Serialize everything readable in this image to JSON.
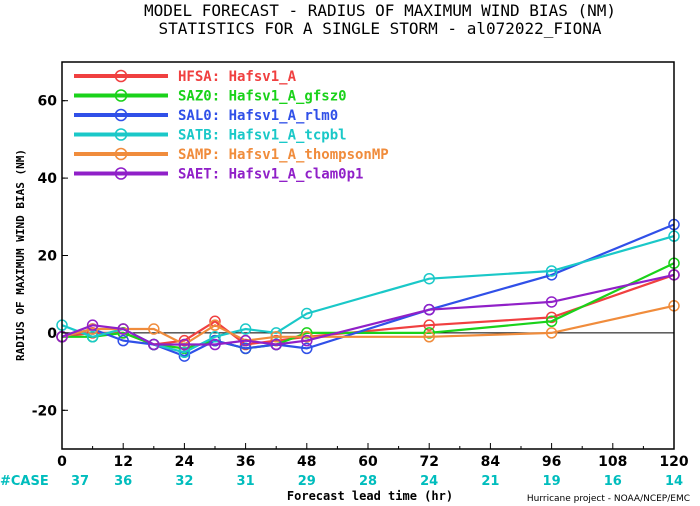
{
  "header": {
    "line1": "MODEL FORECAST - RADIUS OF MAXIMUM WIND BIAS (NM)",
    "line2": "STATISTICS FOR A SINGLE STORM - al072022_FIONA"
  },
  "footer": {
    "case_label": "#CASE",
    "credit": "Hurricane project - NOAA/NCEP/EMC",
    "case_color": "#00bdbd"
  },
  "chart_data": {
    "type": "line",
    "title": "MODEL FORECAST - RADIUS OF MAXIMUM WIND BIAS (NM)",
    "subtitle": "STATISTICS FOR A SINGLE STORM - al072022_FIONA",
    "xlabel": "Forecast lead time (hr)",
    "ylabel": "RADIUS OF MAXIMUM WIND BIAS (NM)",
    "xlim": [
      0,
      120
    ],
    "ylim": [
      -30,
      70
    ],
    "x_ticks": [
      0,
      12,
      24,
      36,
      48,
      60,
      72,
      84,
      96,
      108,
      120
    ],
    "y_ticks": [
      -20,
      0,
      20,
      40,
      60
    ],
    "x": [
      0,
      6,
      12,
      18,
      24,
      30,
      36,
      42,
      48,
      72,
      96,
      120
    ],
    "case_ticks": [
      0,
      12,
      24,
      36,
      48,
      60,
      72,
      84,
      96,
      108,
      120
    ],
    "cases": [
      37,
      36,
      32,
      31,
      29,
      28,
      24,
      21,
      19,
      16,
      14
    ],
    "zero_line": true,
    "grid": false,
    "legend_position": "top-left",
    "series": [
      {
        "name": "HFSA:  Hafsv1_A",
        "color": "#f04040",
        "values": [
          -1,
          0,
          0,
          -3,
          -2,
          3,
          -3,
          -2,
          -1,
          2,
          4,
          15
        ]
      },
      {
        "name": "SAZ0:  Hafsv1_A_gfsz0",
        "color": "#1ad21a",
        "values": [
          -1,
          -1,
          0,
          -3,
          -4,
          -2,
          -4,
          -3,
          0,
          0,
          3,
          18
        ]
      },
      {
        "name": "SAL0:  Hafsv1_A_rlm0",
        "color": "#3050e8",
        "values": [
          -1,
          1,
          -2,
          -3,
          -6,
          -2,
          -4,
          -3,
          -4,
          6,
          15,
          28
        ]
      },
      {
        "name": "SATB:  Hafsv1_A_tcpbl",
        "color": "#1ac8c8",
        "values": [
          2,
          -1,
          1,
          -3,
          -5,
          -1,
          1,
          0,
          5,
          14,
          16,
          25
        ]
      },
      {
        "name": "SAMP:  Hafsv1_A_thompsonMP",
        "color": "#f08c3c",
        "values": [
          -1,
          1,
          1,
          1,
          -3,
          2,
          -2,
          -1,
          -1,
          -1,
          0,
          7
        ]
      },
      {
        "name": "SAET:  Hafsv1_A_clam0p1",
        "color": "#9020c8",
        "values": [
          -1,
          2,
          1,
          -3,
          -3,
          -3,
          -2,
          -3,
          -2,
          6,
          8,
          15
        ]
      }
    ]
  }
}
